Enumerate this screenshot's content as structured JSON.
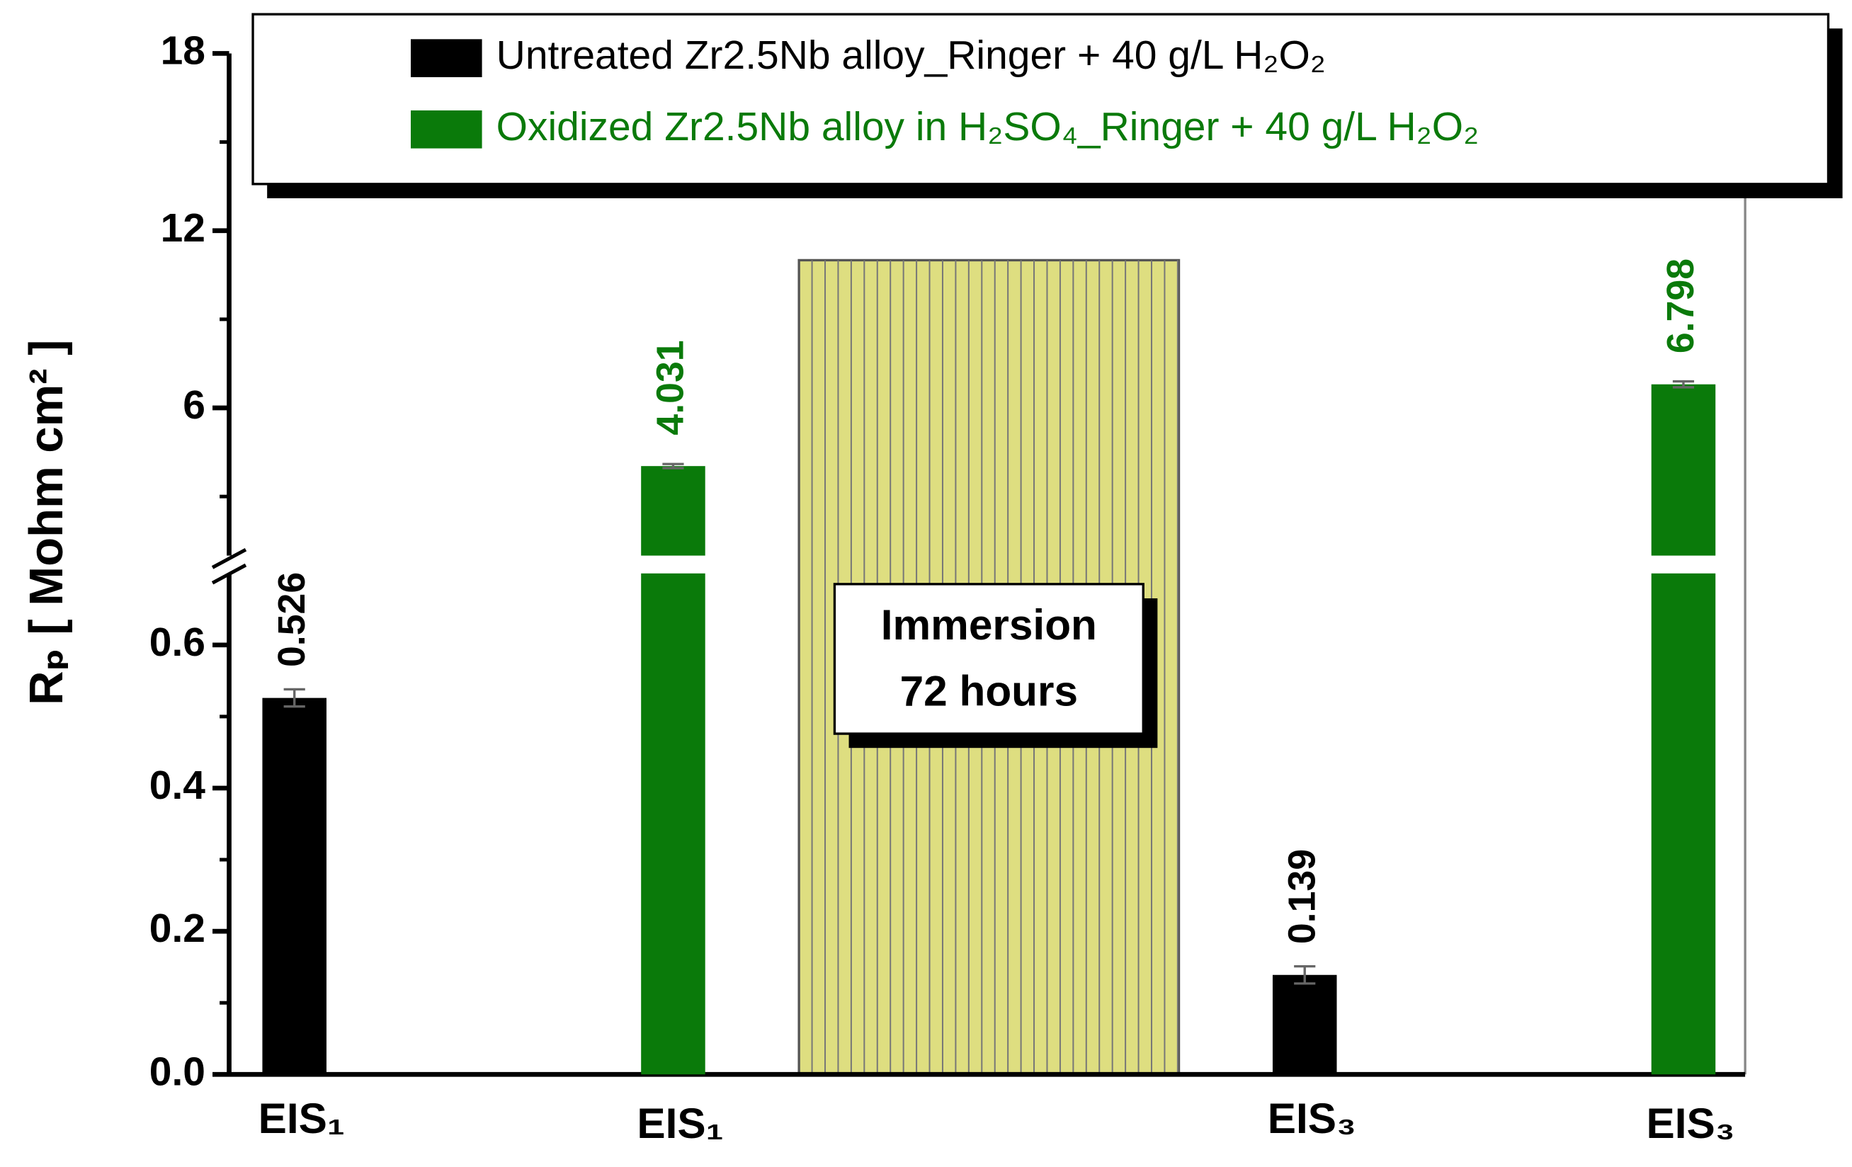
{
  "chart_data": {
    "type": "bar",
    "y_label": "Rₚ [ Mohm cm² ]",
    "categories": [
      "EIS₁",
      "EIS₁",
      "EIS₃",
      "EIS₃"
    ],
    "series": [
      {
        "name": "Untreated Zr2.5Nb alloy_Ringer + 40 g/L H₂O₂",
        "color": "#000000",
        "values": [
          0.526,
          null,
          0.139,
          null
        ],
        "errors": [
          0.012,
          null,
          0.012,
          null
        ]
      },
      {
        "name": "Oxidized Zr2.5Nb alloy in H₂SO₄_Ringer + 40 g/L H₂O₂",
        "color": "#0a7a0a",
        "values": [
          null,
          4.031,
          null,
          6.798
        ],
        "errors": [
          null,
          0.07,
          null,
          0.1
        ]
      }
    ],
    "y_segments": [
      {
        "ylim": [
          0,
          0.7
        ],
        "yticks": [
          {
            "value": 0,
            "label": "0.0"
          },
          0.2,
          0.4,
          0.6
        ],
        "yminorticks": [
          0.1,
          0.3,
          0.5
        ]
      },
      {
        "ylim": [
          1,
          18
        ],
        "yticks": [
          6,
          12,
          18
        ],
        "yminorticks": [
          3,
          9,
          15
        ]
      }
    ],
    "annotation": {
      "text": [
        "Immersion",
        "72 hours"
      ],
      "band_top": 11,
      "color": "#dede80"
    },
    "legend": "top"
  }
}
